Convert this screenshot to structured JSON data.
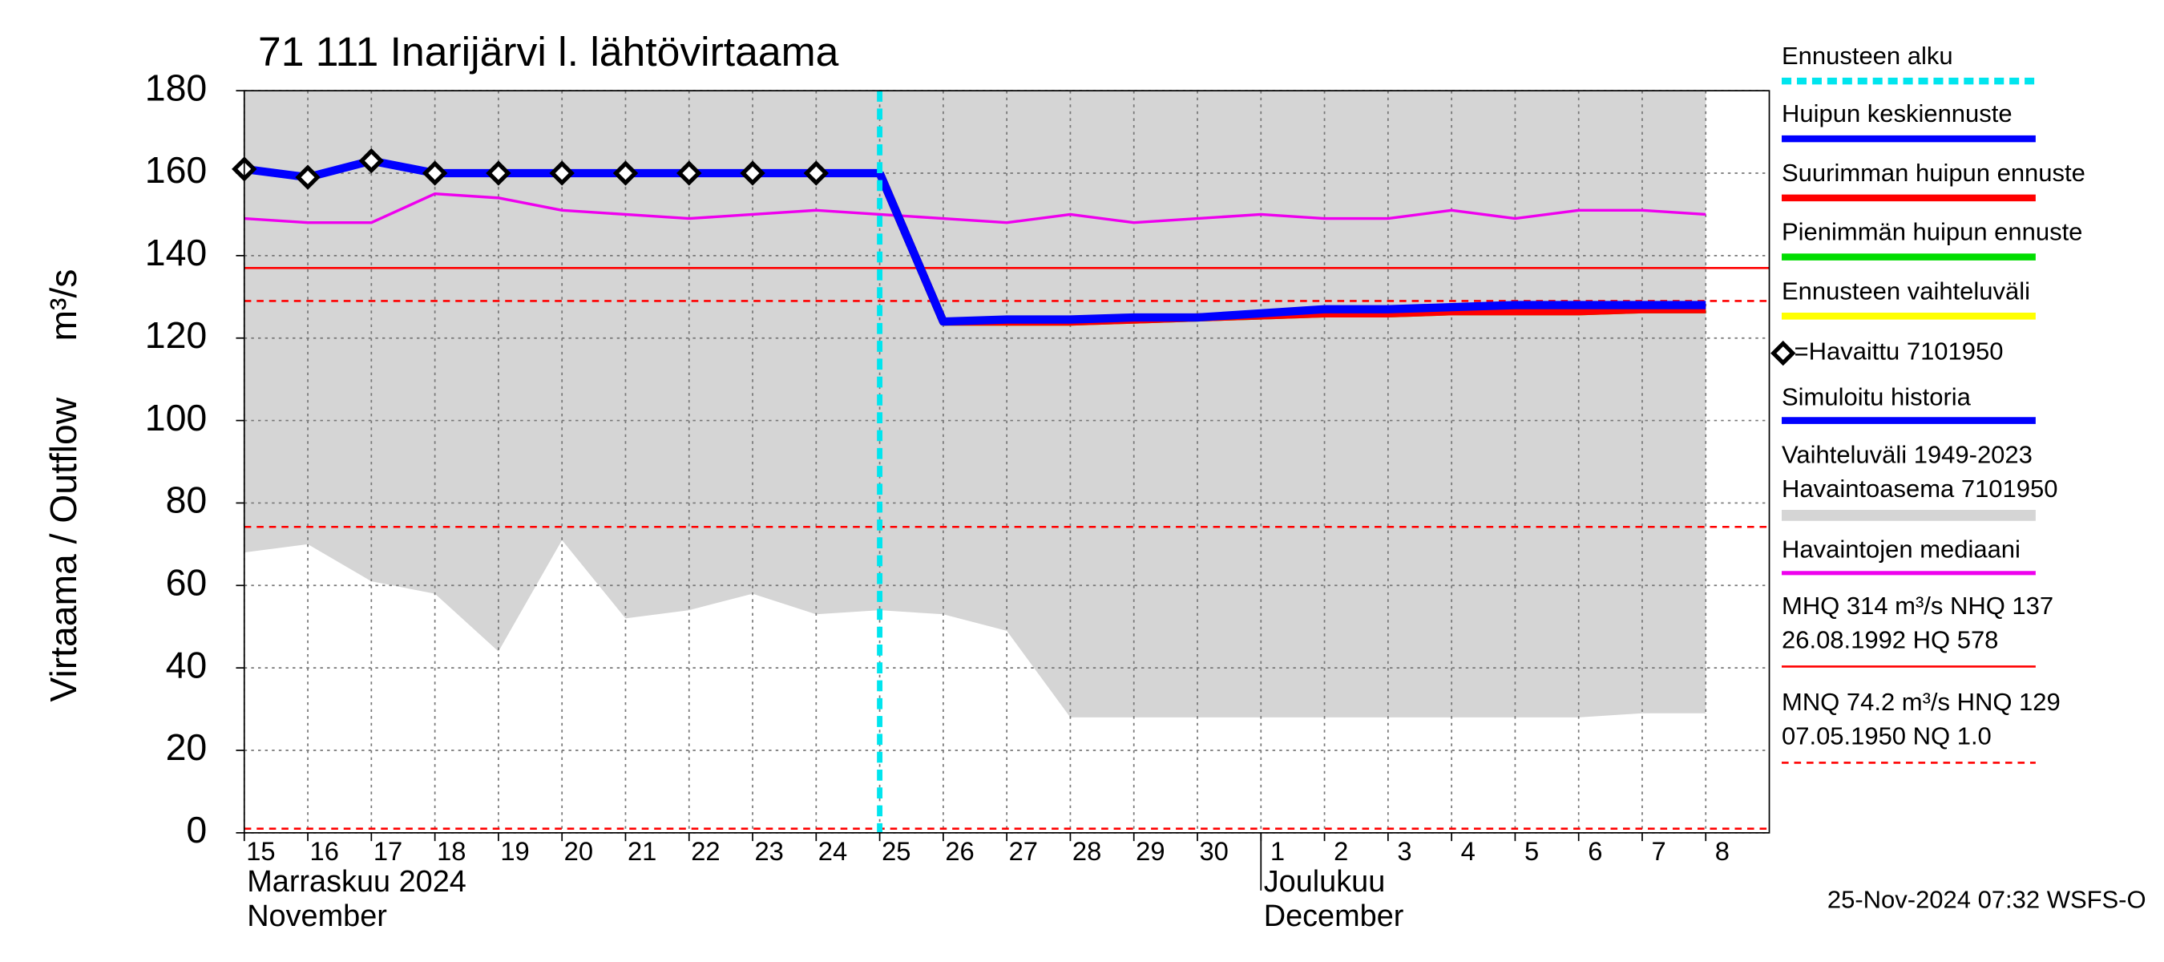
{
  "chart_data": {
    "type": "line",
    "title": "71 111 Inarijärvi l. lähtövirtaama",
    "y_label": "Virtaama / Outflow",
    "y_unit": "m³/s",
    "categories": [
      "15",
      "16",
      "17",
      "18",
      "19",
      "20",
      "21",
      "22",
      "23",
      "24",
      "25",
      "26",
      "27",
      "28",
      "29",
      "30",
      "1",
      "2",
      "3",
      "4",
      "5",
      "6",
      "7",
      "8"
    ],
    "month_labels": [
      [
        "Marraskuu 2024",
        "November"
      ],
      [
        "Joulukuu",
        "December"
      ]
    ],
    "ylim": [
      0,
      180
    ],
    "yticks": [
      0,
      20,
      40,
      60,
      80,
      100,
      120,
      140,
      160,
      180
    ],
    "grid": true,
    "forecast_start": "25",
    "forecast_label": "Ennusteen alku",
    "forecast_color": "#00e5ee",
    "series": [
      {
        "name": "Huipun keskiennuste",
        "color": "#0000ff",
        "values": [
          null,
          null,
          null,
          null,
          null,
          null,
          null,
          null,
          null,
          null,
          160,
          124,
          124.5,
          124.5,
          125,
          125,
          126,
          127,
          127,
          127.5,
          128,
          128,
          128,
          128
        ]
      },
      {
        "name": "Suurimman huipun ennuste",
        "color": "#ff0000",
        "values": [
          null,
          null,
          null,
          null,
          null,
          null,
          null,
          null,
          null,
          null,
          160,
          124,
          124,
          124,
          124.5,
          125,
          125.5,
          126,
          126,
          126.5,
          126.5,
          126.5,
          127,
          127
        ]
      },
      {
        "name": "Pienimmän huipun ennuste",
        "color": "#00dd00",
        "values": [
          null,
          null,
          null,
          null,
          null,
          null,
          null,
          null,
          null,
          null,
          160,
          124,
          124,
          124,
          124.5,
          125,
          125.5,
          126,
          126,
          126.5,
          126.5,
          126.5,
          127,
          127
        ]
      },
      {
        "name": "Ennusteen vaihteluväli",
        "color": "#ffff00",
        "values": [
          null,
          null,
          null,
          null,
          null,
          null,
          null,
          null,
          null,
          null,
          160,
          124,
          124,
          124,
          124.5,
          125,
          125.5,
          126,
          126,
          126.5,
          126.5,
          126.5,
          127,
          127
        ]
      },
      {
        "name": "=Havaittu 7101950",
        "color": "#000000",
        "marker": "diamond",
        "values": [
          161,
          159,
          163,
          160,
          160,
          160,
          160,
          160,
          160,
          160,
          null,
          null,
          null,
          null,
          null,
          null,
          null,
          null,
          null,
          null,
          null,
          null,
          null,
          null
        ]
      },
      {
        "name": "Simuloitu historia",
        "color": "#0000ff",
        "values": [
          161,
          159,
          163,
          160,
          160,
          160,
          160,
          160,
          160,
          160,
          160,
          null,
          null,
          null,
          null,
          null,
          null,
          null,
          null,
          null,
          null,
          null,
          null,
          null
        ]
      },
      {
        "name": "Havaintojen mediaani",
        "color": "#ee00ee",
        "values": [
          149,
          148,
          148,
          155,
          154,
          151,
          150,
          149,
          150,
          151,
          150,
          149,
          148,
          150,
          148,
          149,
          150,
          149,
          149,
          151,
          149,
          151,
          151,
          150
        ]
      }
    ],
    "band": {
      "name": [
        "Vaihteluväli 1949-2023",
        " Havaintoasema 7101950"
      ],
      "color": "#d5d5d5",
      "upper": [
        180,
        180,
        180,
        180,
        180,
        180,
        180,
        180,
        180,
        180,
        180,
        180,
        180,
        180,
        180,
        180,
        180,
        180,
        180,
        180,
        180,
        180,
        180,
        180
      ],
      "lower": [
        68,
        70,
        61,
        58,
        44,
        71,
        52,
        54,
        58,
        53,
        54,
        53,
        49,
        28,
        28,
        28,
        28,
        28,
        28,
        28,
        28,
        28,
        29,
        29
      ]
    },
    "reference_lines": [
      {
        "value": 137,
        "style": "solid"
      },
      {
        "value": 129,
        "style": "dashed"
      },
      {
        "value": 74.2,
        "style": "dashed"
      },
      {
        "value": 1.0,
        "style": "dashed"
      }
    ],
    "reference_legend": [
      {
        "lines": [
          "MHQ  314 m³/s NHQ  137",
          "26.08.1992 HQ  578"
        ],
        "style": "solid",
        "color": "#ff0000"
      },
      {
        "lines": [
          "MNQ 74.2 m³/s HNQ  129",
          "07.05.1950 NQ  1.0"
        ],
        "style": "dashed",
        "color": "#ff0000"
      }
    ],
    "footer": "25-Nov-2024 07:32 WSFS-O"
  }
}
